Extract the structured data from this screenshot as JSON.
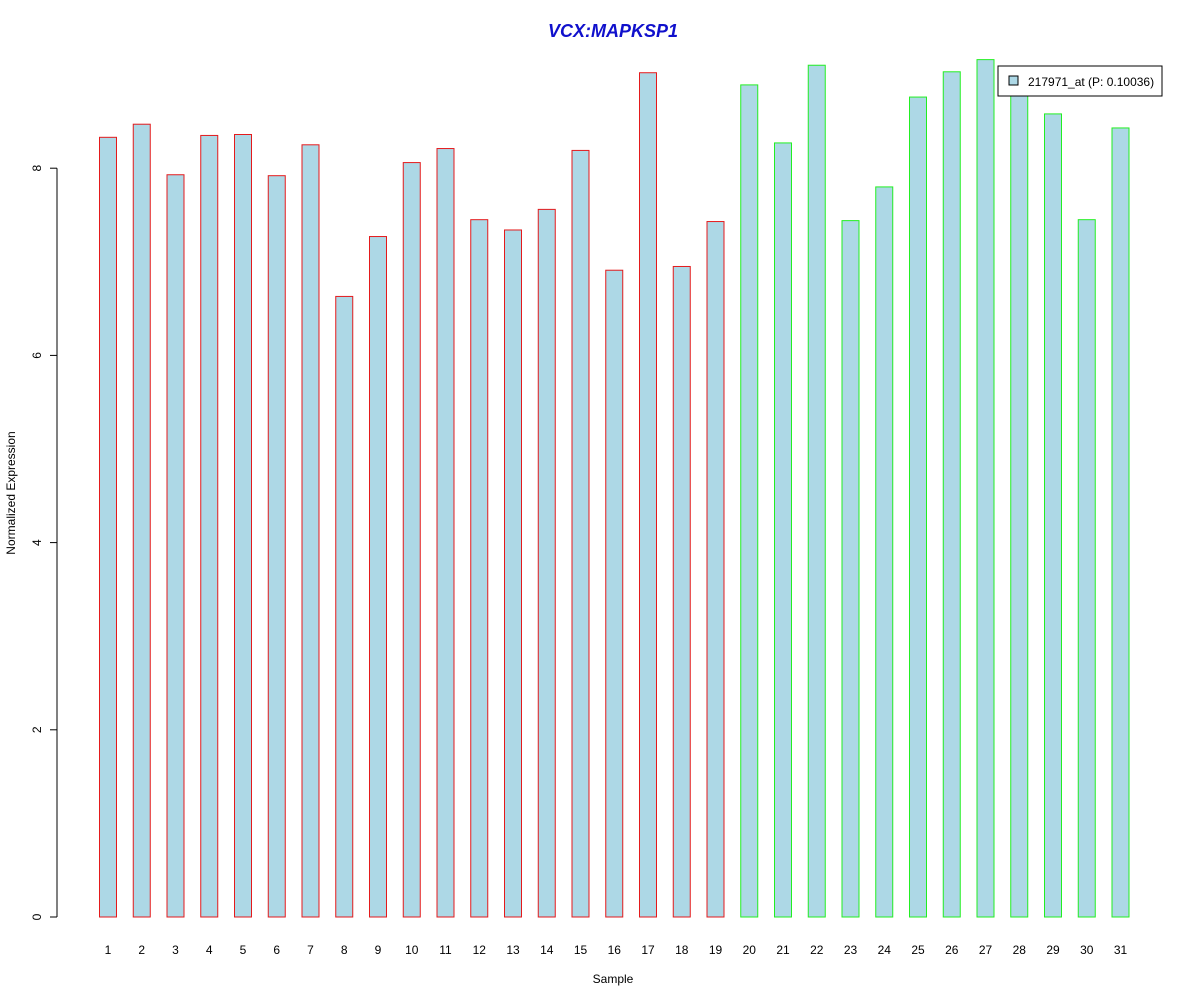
{
  "chart_data": {
    "type": "bar",
    "title": "VCX:MAPKSP1",
    "xlabel": "Sample",
    "ylabel": "Normalized Expression",
    "categories": [
      "1",
      "2",
      "3",
      "4",
      "5",
      "6",
      "7",
      "8",
      "9",
      "10",
      "11",
      "12",
      "13",
      "14",
      "15",
      "16",
      "17",
      "18",
      "19",
      "20",
      "21",
      "22",
      "23",
      "24",
      "25",
      "26",
      "27",
      "28",
      "29",
      "30",
      "31"
    ],
    "series": [
      {
        "name": "217971_at (P: 0.10036)",
        "values": [
          8.33,
          8.47,
          7.93,
          8.35,
          8.36,
          7.92,
          8.25,
          6.63,
          7.27,
          8.06,
          8.21,
          7.45,
          7.34,
          7.56,
          8.19,
          6.91,
          9.02,
          6.95,
          7.43,
          8.89,
          8.27,
          9.1,
          7.44,
          7.8,
          8.76,
          9.03,
          9.16,
          8.8,
          8.58,
          7.45,
          8.43
        ]
      }
    ],
    "group_border_colors": [
      "#e41a1c",
      "#e41a1c",
      "#e41a1c",
      "#e41a1c",
      "#e41a1c",
      "#e41a1c",
      "#e41a1c",
      "#e41a1c",
      "#e41a1c",
      "#e41a1c",
      "#e41a1c",
      "#e41a1c",
      "#e41a1c",
      "#e41a1c",
      "#e41a1c",
      "#e41a1c",
      "#e41a1c",
      "#e41a1c",
      "#e41a1c",
      "#22ee22",
      "#22ee22",
      "#22ee22",
      "#22ee22",
      "#22ee22",
      "#22ee22",
      "#22ee22",
      "#22ee22",
      "#22ee22",
      "#22ee22",
      "#22ee22",
      "#22ee22"
    ],
    "bar_fill": "#add8e6",
    "y_ticks": [
      0,
      2,
      4,
      6,
      8
    ],
    "ylim": [
      0,
      9.16
    ],
    "grid": false,
    "legend_position": "top-right"
  }
}
